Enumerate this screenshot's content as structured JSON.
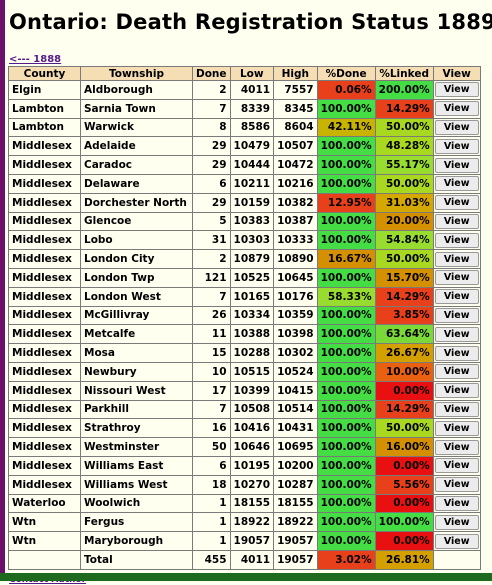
{
  "page": {
    "title": "Ontario: Death Registration Status 1889",
    "nav_link": "<--- 1888",
    "footer_link": "Contact Author"
  },
  "table": {
    "headers": [
      "County",
      "Township",
      "Done",
      "Low",
      "High",
      "%Done",
      "%Linked",
      "View"
    ],
    "button_label": "View",
    "rows": [
      {
        "county": "Elgin",
        "township": "Aldborough",
        "done": "2",
        "low": "4011",
        "high": "7557",
        "pct_done": "0.06%",
        "pct_linked": "200.00%",
        "done_color": "#e8401a",
        "linked_color": "#44dd44"
      },
      {
        "county": "Lambton",
        "township": "Sarnia Town",
        "done": "7",
        "low": "8339",
        "high": "8345",
        "pct_done": "100.00%",
        "pct_linked": "14.29%",
        "done_color": "#44dd44",
        "linked_color": "#e8401a"
      },
      {
        "county": "Lambton",
        "township": "Warwick",
        "done": "8",
        "low": "8586",
        "high": "8604",
        "pct_done": "42.11%",
        "pct_linked": "50.00%",
        "done_color": "#c8b400",
        "linked_color": "#a8d820"
      },
      {
        "county": "Middlesex",
        "township": "Adelaide",
        "done": "29",
        "low": "10479",
        "high": "10507",
        "pct_done": "100.00%",
        "pct_linked": "48.28%",
        "done_color": "#44dd44",
        "linked_color": "#a8d820"
      },
      {
        "county": "Middlesex",
        "township": "Caradoc",
        "done": "29",
        "low": "10444",
        "high": "10472",
        "pct_done": "100.00%",
        "pct_linked": "55.17%",
        "done_color": "#44dd44",
        "linked_color": "#98dc30"
      },
      {
        "county": "Middlesex",
        "township": "Delaware",
        "done": "6",
        "low": "10211",
        "high": "10216",
        "pct_done": "100.00%",
        "pct_linked": "50.00%",
        "done_color": "#44dd44",
        "linked_color": "#a8d820"
      },
      {
        "county": "Middlesex",
        "township": "Dorchester North",
        "done": "29",
        "low": "10159",
        "high": "10382",
        "pct_done": "12.95%",
        "pct_linked": "31.03%",
        "done_color": "#e8401a",
        "linked_color": "#d4a800"
      },
      {
        "county": "Middlesex",
        "township": "Glencoe",
        "done": "5",
        "low": "10383",
        "high": "10387",
        "pct_done": "100.00%",
        "pct_linked": "20.00%",
        "done_color": "#44dd44",
        "linked_color": "#d49000"
      },
      {
        "county": "Middlesex",
        "township": "Lobo",
        "done": "31",
        "low": "10303",
        "high": "10333",
        "pct_done": "100.00%",
        "pct_linked": "54.84%",
        "done_color": "#44dd44",
        "linked_color": "#98dc30"
      },
      {
        "county": "Middlesex",
        "township": "London City",
        "done": "2",
        "low": "10879",
        "high": "10890",
        "pct_done": "16.67%",
        "pct_linked": "50.00%",
        "done_color": "#d49000",
        "linked_color": "#a8d820"
      },
      {
        "county": "Middlesex",
        "township": "London Twp",
        "done": "121",
        "low": "10525",
        "high": "10645",
        "pct_done": "100.00%",
        "pct_linked": "15.70%",
        "done_color": "#44dd44",
        "linked_color": "#d49000"
      },
      {
        "county": "Middlesex",
        "township": "London West",
        "done": "7",
        "low": "10165",
        "high": "10176",
        "pct_done": "58.33%",
        "pct_linked": "14.29%",
        "done_color": "#98dc30",
        "linked_color": "#e8401a"
      },
      {
        "county": "Middlesex",
        "township": "McGillivray",
        "done": "26",
        "low": "10334",
        "high": "10359",
        "pct_done": "100.00%",
        "pct_linked": "3.85%",
        "done_color": "#44dd44",
        "linked_color": "#e8401a"
      },
      {
        "county": "Middlesex",
        "township": "Metcalfe",
        "done": "11",
        "low": "10388",
        "high": "10398",
        "pct_done": "100.00%",
        "pct_linked": "63.64%",
        "done_color": "#44dd44",
        "linked_color": "#7ad838"
      },
      {
        "county": "Middlesex",
        "township": "Mosa",
        "done": "15",
        "low": "10288",
        "high": "10302",
        "pct_done": "100.00%",
        "pct_linked": "26.67%",
        "done_color": "#44dd44",
        "linked_color": "#d4a000"
      },
      {
        "county": "Middlesex",
        "township": "Newbury",
        "done": "10",
        "low": "10515",
        "high": "10524",
        "pct_done": "100.00%",
        "pct_linked": "10.00%",
        "done_color": "#44dd44",
        "linked_color": "#e86010"
      },
      {
        "county": "Middlesex",
        "township": "Nissouri West",
        "done": "17",
        "low": "10399",
        "high": "10415",
        "pct_done": "100.00%",
        "pct_linked": "0.00%",
        "done_color": "#44dd44",
        "linked_color": "#e81010"
      },
      {
        "county": "Middlesex",
        "township": "Parkhill",
        "done": "7",
        "low": "10508",
        "high": "10514",
        "pct_done": "100.00%",
        "pct_linked": "14.29%",
        "done_color": "#44dd44",
        "linked_color": "#e8401a"
      },
      {
        "county": "Middlesex",
        "township": "Strathroy",
        "done": "16",
        "low": "10416",
        "high": "10431",
        "pct_done": "100.00%",
        "pct_linked": "50.00%",
        "done_color": "#44dd44",
        "linked_color": "#a8d820"
      },
      {
        "county": "Middlesex",
        "township": "Westminster",
        "done": "50",
        "low": "10646",
        "high": "10695",
        "pct_done": "100.00%",
        "pct_linked": "16.00%",
        "done_color": "#44dd44",
        "linked_color": "#d49000"
      },
      {
        "county": "Middlesex",
        "township": "Williams East",
        "done": "6",
        "low": "10195",
        "high": "10200",
        "pct_done": "100.00%",
        "pct_linked": "0.00%",
        "done_color": "#44dd44",
        "linked_color": "#e81010"
      },
      {
        "county": "Middlesex",
        "township": "Williams West",
        "done": "18",
        "low": "10270",
        "high": "10287",
        "pct_done": "100.00%",
        "pct_linked": "5.56%",
        "done_color": "#44dd44",
        "linked_color": "#e8401a"
      },
      {
        "county": "Waterloo",
        "township": "Woolwich",
        "done": "1",
        "low": "18155",
        "high": "18155",
        "pct_done": "100.00%",
        "pct_linked": "0.00%",
        "done_color": "#44dd44",
        "linked_color": "#e81010"
      },
      {
        "county": "Wtn",
        "township": "Fergus",
        "done": "1",
        "low": "18922",
        "high": "18922",
        "pct_done": "100.00%",
        "pct_linked": "100.00%",
        "done_color": "#44dd44",
        "linked_color": "#44dd44"
      },
      {
        "county": "Wtn",
        "township": "Maryborough",
        "done": "1",
        "low": "19057",
        "high": "19057",
        "pct_done": "100.00%",
        "pct_linked": "0.00%",
        "done_color": "#44dd44",
        "linked_color": "#e81010"
      }
    ],
    "total": {
      "label": "Total",
      "done": "455",
      "low": "4011",
      "high": "19057",
      "pct_done": "3.02%",
      "pct_linked": "26.81%",
      "done_color": "#e8401a",
      "linked_color": "#d4a000"
    }
  }
}
